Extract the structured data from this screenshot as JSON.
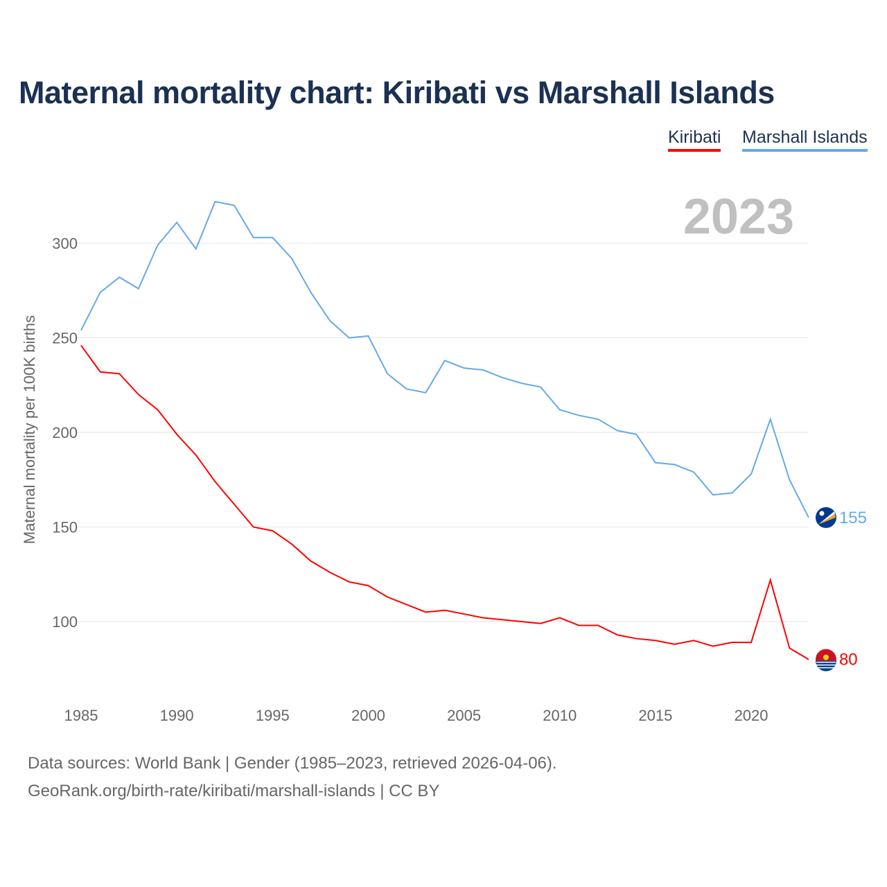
{
  "title": "Maternal mortality chart: Kiribati vs Marshall Islands",
  "year_label": "2023",
  "footer": {
    "line1": "Data sources: World Bank | Gender (1985–2023, retrieved 2026-04-06).",
    "line2": "GeoRank.org/birth-rate/kiribati/marshall-islands | CC BY"
  },
  "chart_data": {
    "type": "line",
    "title": "Maternal mortality chart: Kiribati vs Marshall Islands",
    "xlabel": "",
    "ylabel": "Maternal mortality per 100K births",
    "xlim": [
      1985,
      2023
    ],
    "ylim": [
      70,
      330
    ],
    "yticks": [
      100,
      150,
      200,
      250,
      300
    ],
    "xticks": [
      1985,
      1990,
      1995,
      2000,
      2005,
      2010,
      2015,
      2020
    ],
    "grid": true,
    "legend_placement": "top-right",
    "x": [
      1985,
      1986,
      1987,
      1988,
      1989,
      1990,
      1991,
      1992,
      1993,
      1994,
      1995,
      1996,
      1997,
      1998,
      1999,
      2000,
      2001,
      2002,
      2003,
      2004,
      2005,
      2006,
      2007,
      2008,
      2009,
      2010,
      2011,
      2012,
      2013,
      2014,
      2015,
      2016,
      2017,
      2018,
      2019,
      2020,
      2021,
      2022,
      2023
    ],
    "series": [
      {
        "name": "Kiribati",
        "color": "#ff0000",
        "end_label": "80",
        "values": [
          246,
          232,
          231,
          220,
          212,
          199,
          188,
          174,
          162,
          150,
          148,
          141,
          132,
          126,
          121,
          119,
          113,
          109,
          105,
          106,
          104,
          102,
          101,
          100,
          99,
          102,
          98,
          98,
          93,
          91,
          90,
          88,
          90,
          87,
          89,
          89,
          122,
          86,
          80
        ]
      },
      {
        "name": "Marshall Islands",
        "color": "#64a8eb",
        "end_label": "155",
        "values": [
          254,
          274,
          282,
          276,
          299,
          311,
          297,
          322,
          320,
          303,
          303,
          292,
          274,
          259,
          250,
          251,
          231,
          223,
          221,
          238,
          234,
          233,
          229,
          226,
          224,
          212,
          209,
          207,
          201,
          199,
          184,
          183,
          179,
          167,
          168,
          178,
          207,
          175,
          155
        ]
      }
    ]
  }
}
